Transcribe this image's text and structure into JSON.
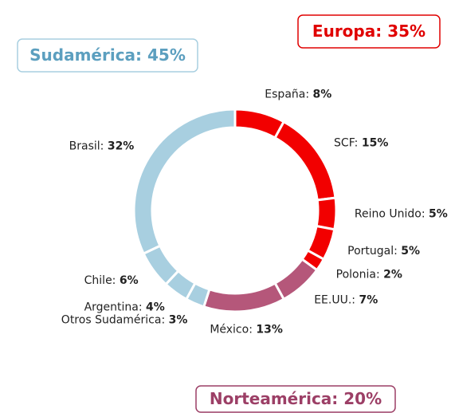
{
  "chart_data": {
    "type": "donut",
    "categories": [
      "España:",
      "SCF:",
      "Reino Unido:",
      "Portugal:",
      "Polonia:",
      "EE.UU.:",
      "México:",
      "Otros Sudamérica:",
      "Argentina:",
      "Chile:",
      "Brasil:"
    ],
    "values": [
      8,
      15,
      5,
      5,
      2,
      7,
      13,
      3,
      4,
      6,
      32
    ],
    "value_labels": [
      "8%",
      "15%",
      "5%",
      "5%",
      "2%",
      "7%",
      "13%",
      "3%",
      "4%",
      "6%",
      "32%"
    ],
    "colors": [
      "#f20000",
      "#f20000",
      "#f20000",
      "#f20000",
      "#f20000",
      "#b5577a",
      "#b5577a",
      "#a8cfe0",
      "#a8cfe0",
      "#a8cfe0",
      "#a8cfe0"
    ],
    "groups": [
      {
        "label": "Sudamérica:  45%",
        "color": "#5c9fbf",
        "border": "#a8cfe0"
      },
      {
        "label": "Europa:  35%",
        "color": "#e00000",
        "border": "#e00000"
      },
      {
        "label": "Norteamérica:  20%",
        "color": "#9c3f66",
        "border": "#9c3f66"
      }
    ]
  }
}
